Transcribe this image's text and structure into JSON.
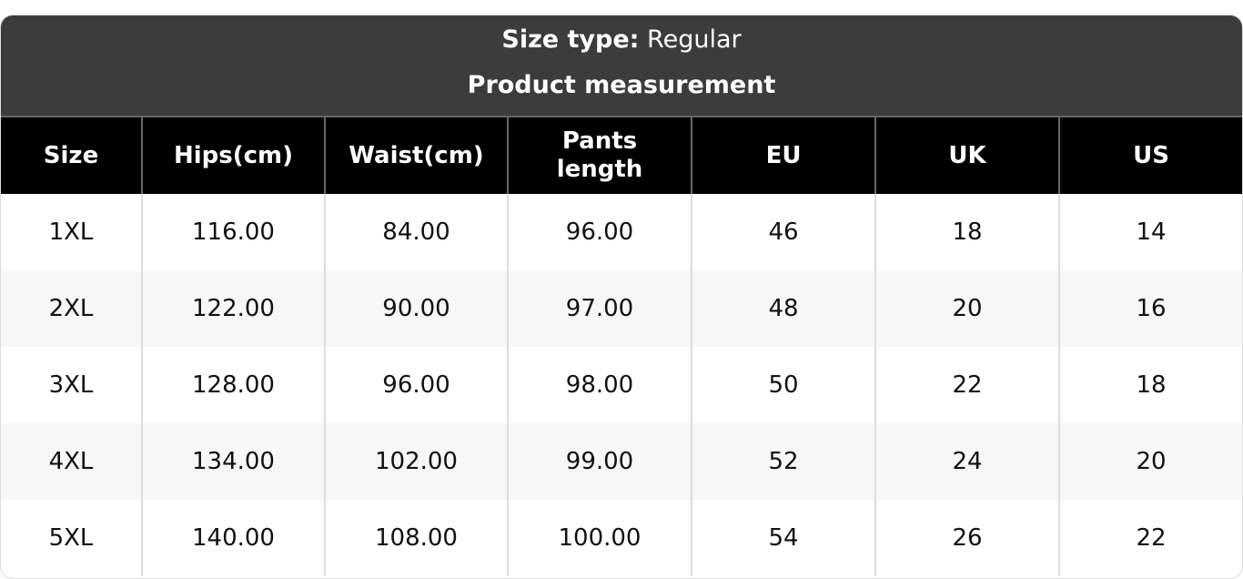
{
  "header": {
    "size_type_label": "Size type:",
    "size_type_value": "Regular",
    "title": "Product measurement"
  },
  "columns": [
    "Size",
    "Hips(cm)",
    "Waist(cm)",
    "Pants length",
    "EU",
    "UK",
    "US"
  ],
  "rows": [
    [
      "1XL",
      "116.00",
      "84.00",
      "96.00",
      "46",
      "18",
      "14"
    ],
    [
      "2XL",
      "122.00",
      "90.00",
      "97.00",
      "48",
      "20",
      "16"
    ],
    [
      "3XL",
      "128.00",
      "96.00",
      "98.00",
      "50",
      "22",
      "18"
    ],
    [
      "4XL",
      "134.00",
      "102.00",
      "99.00",
      "52",
      "24",
      "20"
    ],
    [
      "5XL",
      "140.00",
      "108.00",
      "100.00",
      "54",
      "26",
      "22"
    ]
  ]
}
